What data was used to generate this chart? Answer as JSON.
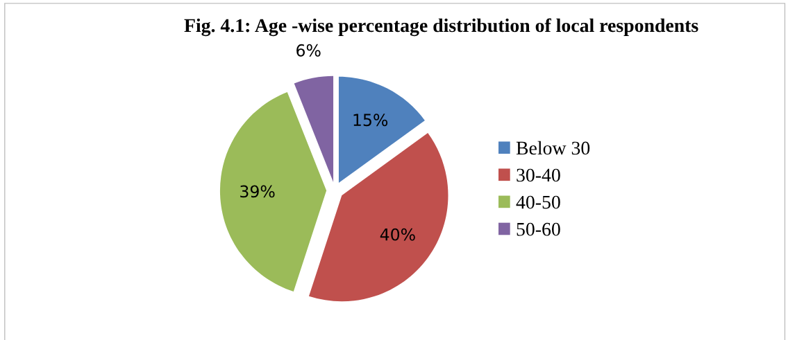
{
  "chart_data": {
    "type": "pie",
    "title": "Fig. 4.1: Age -wise percentage distribution of local respondents",
    "categories": [
      "Below 30",
      "30-40",
      "40-50",
      "50-60"
    ],
    "values": [
      15,
      40,
      39,
      6
    ],
    "colors": [
      "#4f81bd",
      "#c0504d",
      "#9bbb59",
      "#8064a2"
    ],
    "value_labels": [
      "15%",
      "40%",
      "39%",
      "6%"
    ],
    "legend": "right"
  }
}
